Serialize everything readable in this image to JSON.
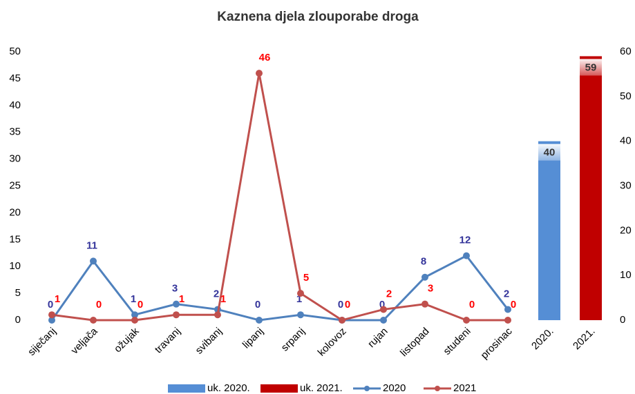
{
  "chart_data": {
    "type": "bar",
    "title": "Kaznena djela zlouporabe droga",
    "categories": [
      "siječanj",
      "veljača",
      "ožujak",
      "travanj",
      "svibanj",
      "lipanj",
      "srpanj",
      "kolovoz",
      "rujan",
      "listopad",
      "studeni",
      "prosinac",
      "2020.",
      "2021."
    ],
    "series": [
      {
        "name": "uk. 2020.",
        "type": "bar",
        "axis": "y2",
        "color": "#558ed5",
        "values": [
          null,
          null,
          null,
          null,
          null,
          null,
          null,
          null,
          null,
          null,
          null,
          null,
          40,
          null
        ]
      },
      {
        "name": "uk. 2021.",
        "type": "bar",
        "axis": "y2",
        "color": "#c00000",
        "values": [
          null,
          null,
          null,
          null,
          null,
          null,
          null,
          null,
          null,
          null,
          null,
          null,
          null,
          59
        ]
      },
      {
        "name": "2020",
        "type": "line",
        "color": "#4f81bd",
        "label_color": "#33339a",
        "values": [
          0,
          11,
          1,
          3,
          2,
          0,
          1,
          0,
          0,
          8,
          12,
          2,
          null,
          null
        ]
      },
      {
        "name": "2021",
        "type": "line",
        "color": "#c0504d",
        "label_color": "#ff0000",
        "values": [
          1,
          0,
          0,
          1,
          1,
          46,
          5,
          0,
          2,
          3,
          0,
          0,
          null,
          null
        ]
      }
    ],
    "ylim": [
      0,
      50
    ],
    "yticks": [
      0,
      5,
      10,
      15,
      20,
      25,
      30,
      35,
      40,
      45,
      50
    ],
    "y2lim": [
      0,
      60
    ],
    "y2ticks": [
      0,
      10,
      20,
      30,
      40,
      50,
      60
    ],
    "grid": false,
    "legend": "bottom"
  }
}
